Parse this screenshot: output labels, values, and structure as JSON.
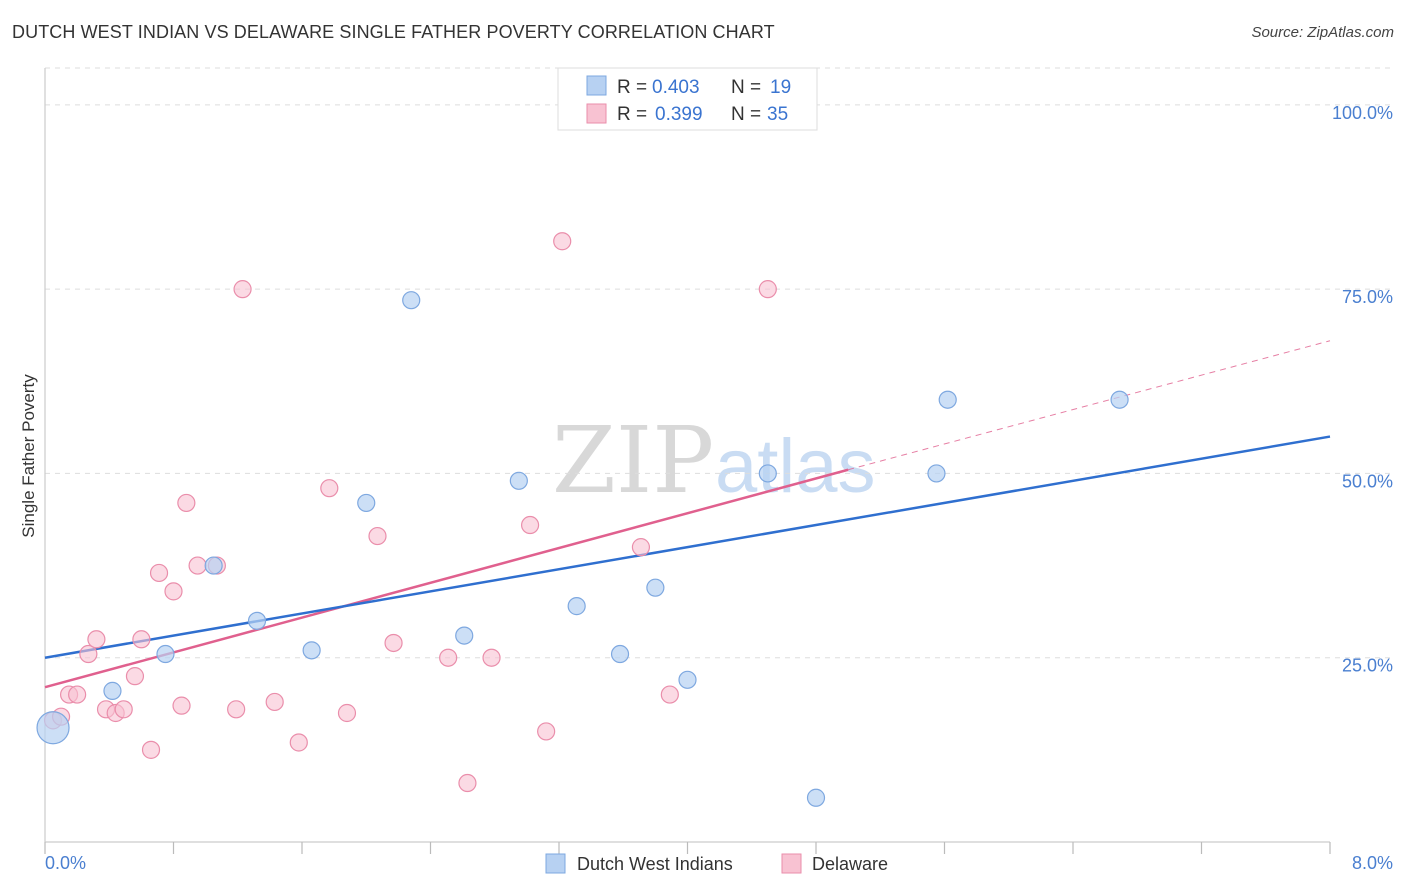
{
  "title": "DUTCH WEST INDIAN VS DELAWARE SINGLE FATHER POVERTY CORRELATION CHART",
  "source": "Source: ZipAtlas.com",
  "watermark": {
    "zip": "ZIP",
    "atlas": "atlas"
  },
  "colors": {
    "blue_fill": "#b7d1f2",
    "blue_stroke": "#7ea8e0",
    "blue_line": "#2f6fcf",
    "pink_fill": "#f8c2d2",
    "pink_stroke": "#ea8eab",
    "pink_line": "#e0608e",
    "grid": "#dddddd",
    "axis_text": "#4a7fd0"
  },
  "legend": {
    "rows": [
      {
        "r_label": "R =",
        "r_value": "0.403",
        "n_label": "N =",
        "n_value": "19"
      },
      {
        "r_label": "R =",
        "r_value": "0.399",
        "n_label": "N =",
        "n_value": "35"
      }
    ]
  },
  "bottom_legend": [
    "Dutch West Indians",
    "Delaware"
  ],
  "chart_data": {
    "type": "scatter",
    "title": "DUTCH WEST INDIAN VS DELAWARE SINGLE FATHER POVERTY CORRELATION CHART",
    "xlabel": "",
    "ylabel": "Single Father Poverty",
    "xlim": [
      0,
      8
    ],
    "ylim": [
      0,
      105
    ],
    "x_tick_labels": [
      "0.0%",
      "8.0%"
    ],
    "y_ticks": [
      25,
      50,
      75,
      100
    ],
    "y_tick_labels": [
      "25.0%",
      "50.0%",
      "75.0%",
      "100.0%"
    ],
    "series": [
      {
        "name": "Dutch West Indians",
        "color": "blue",
        "R": 0.403,
        "N": 19,
        "points": [
          [
            0.05,
            15.5
          ],
          [
            0.42,
            20.5
          ],
          [
            0.75,
            25.5
          ],
          [
            1.05,
            37.5
          ],
          [
            1.32,
            30.0
          ],
          [
            1.66,
            26.0
          ],
          [
            2.0,
            46.0
          ],
          [
            2.28,
            73.5
          ],
          [
            2.61,
            28.0
          ],
          [
            2.95,
            49.0
          ],
          [
            3.31,
            32.0
          ],
          [
            3.58,
            25.5
          ],
          [
            3.8,
            34.5
          ],
          [
            4.0,
            22.0
          ],
          [
            4.5,
            50.0
          ],
          [
            4.8,
            6.0
          ],
          [
            5.55,
            50.0
          ],
          [
            5.62,
            60.0
          ],
          [
            6.69,
            60.0
          ]
        ],
        "trend": {
          "x": [
            0,
            8
          ],
          "y": [
            25.0,
            55.0
          ],
          "style": "solid"
        }
      },
      {
        "name": "Delaware",
        "color": "pink",
        "R": 0.399,
        "N": 35,
        "points": [
          [
            0.05,
            16.5
          ],
          [
            0.1,
            17.0
          ],
          [
            0.15,
            20.0
          ],
          [
            0.2,
            20.0
          ],
          [
            0.27,
            25.5
          ],
          [
            0.32,
            27.5
          ],
          [
            0.38,
            18.0
          ],
          [
            0.44,
            17.5
          ],
          [
            0.49,
            18.0
          ],
          [
            0.56,
            22.5
          ],
          [
            0.6,
            27.5
          ],
          [
            0.66,
            12.5
          ],
          [
            0.71,
            36.5
          ],
          [
            0.8,
            34.0
          ],
          [
            0.85,
            18.5
          ],
          [
            0.88,
            46.0
          ],
          [
            0.95,
            37.5
          ],
          [
            1.07,
            37.5
          ],
          [
            1.19,
            18.0
          ],
          [
            1.23,
            75.0
          ],
          [
            1.43,
            19.0
          ],
          [
            1.58,
            13.5
          ],
          [
            1.77,
            48.0
          ],
          [
            1.88,
            17.5
          ],
          [
            2.07,
            41.5
          ],
          [
            2.17,
            27.0
          ],
          [
            2.51,
            25.0
          ],
          [
            2.63,
            8.0
          ],
          [
            2.78,
            25.0
          ],
          [
            3.02,
            43.0
          ],
          [
            3.12,
            15.0
          ],
          [
            3.22,
            81.5
          ],
          [
            3.71,
            40.0
          ],
          [
            3.89,
            20.0
          ],
          [
            4.5,
            75.0
          ]
        ],
        "trend": {
          "x": [
            0,
            5.0
          ],
          "y": [
            21.0,
            50.5
          ],
          "style": "solid"
        },
        "trend_extension": {
          "x": [
            5.0,
            8
          ],
          "y": [
            50.5,
            68.0
          ],
          "style": "dashed"
        }
      }
    ]
  }
}
